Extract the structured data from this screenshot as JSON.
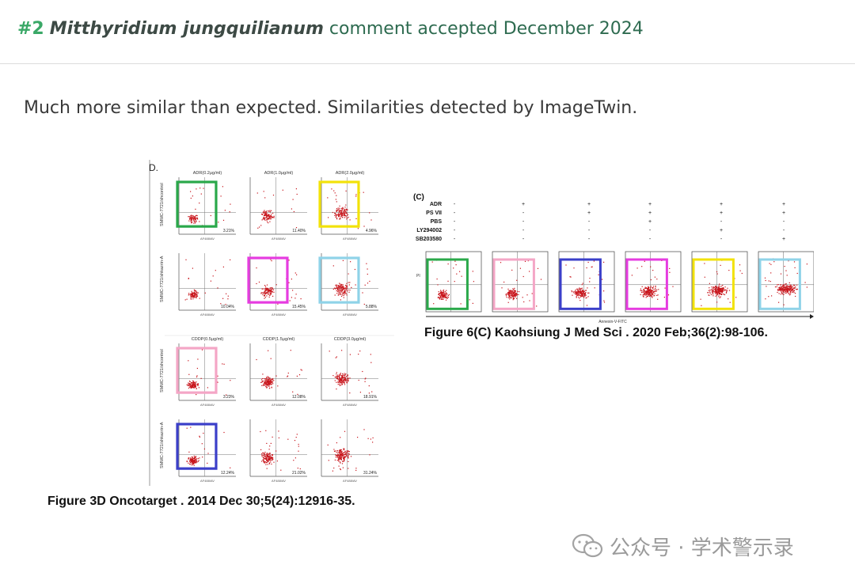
{
  "header": {
    "number": "#2",
    "species": "Mitthyridium jungquilianum",
    "status": "comment accepted December 2024"
  },
  "comment": {
    "text": "Much more similar than expected. Similarities detected by ImageTwin."
  },
  "figure_left": {
    "panel_label": "D.",
    "caption": "Figure 3D Oncotarget . 2014 Dec 30;5(24):12916-35.",
    "col_titles_top": [
      "ADR(0.2μg/ml)",
      "ADR(1.0μg/ml)",
      "ADR(2.0μg/ml)"
    ],
    "col_titles_bottom": [
      "CDDP(0.5μg/ml)",
      "CDDP(1.5μg/ml)",
      "CDDP(3.0μg/ml)"
    ],
    "row_labels": [
      "SMMC-7721/shcontrol",
      "SMMC-7721/shkazrin-A",
      "SMMC-7721/shcontrol",
      "SMMC-7721/shkazrin-A"
    ],
    "percentages": [
      [
        "3.21%",
        "11.40%",
        "4.96%"
      ],
      [
        "10.04%",
        "15.45%",
        "5.88%"
      ],
      [
        "3.23%",
        "12.08%",
        "18.91%"
      ],
      [
        "12.24%",
        "21.02%",
        "31.24%"
      ]
    ],
    "axis_x": "AF488/AV",
    "highlight_colors": {
      "r0c0": "#2aa84a",
      "r0c2": "#f2e20a",
      "r1c1": "#e63ce0",
      "r1c2": "#8fd3e8",
      "r2c0": "#f4a6c6",
      "r3c0": "#3b3fc9"
    }
  },
  "figure_right": {
    "panel_label": "(C)",
    "caption": "Figure 6(C) Kaohsiung J Med Sci . 2020 Feb;36(2):98-106.",
    "treatments": [
      {
        "name": "ADR",
        "values": [
          "-",
          "+",
          "+",
          "+",
          "+",
          "+"
        ]
      },
      {
        "name": "PS VII",
        "values": [
          "-",
          "-",
          "+",
          "+",
          "+",
          "+"
        ]
      },
      {
        "name": "PBS",
        "values": [
          "-",
          "-",
          "-",
          "+",
          "-",
          "-"
        ]
      },
      {
        "name": "LY294002",
        "values": [
          "-",
          "-",
          "-",
          "-",
          "+",
          "-"
        ]
      },
      {
        "name": "SB203580",
        "values": [
          "-",
          "-",
          "-",
          "-",
          "-",
          "+"
        ]
      }
    ],
    "axis_x": "Annexin-V-FITC",
    "axis_y": "PI",
    "highlight_colors": [
      "#2aa84a",
      "#f4a6c6",
      "#3b3fc9",
      "#e63ce0",
      "#f2e20a",
      "#8fd3e8"
    ]
  },
  "watermark": {
    "text": "公众号 · 学术警示录",
    "icon": "wechat-icon"
  }
}
